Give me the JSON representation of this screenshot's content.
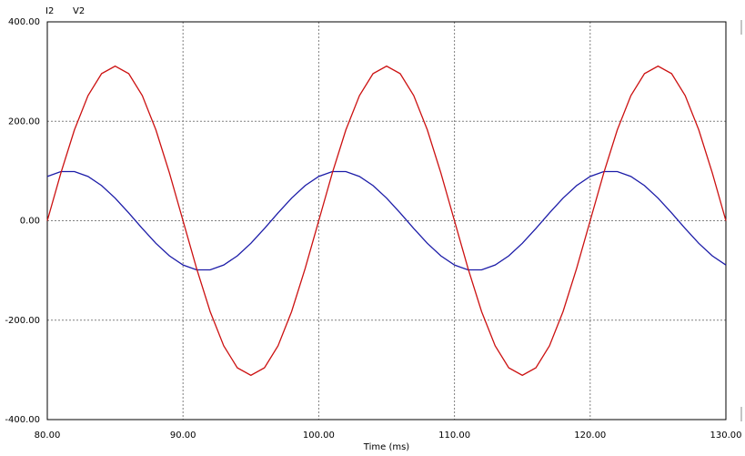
{
  "chart_data": {
    "type": "line",
    "xlabel": "Time (ms)",
    "x": [
      80,
      81,
      82,
      83,
      84,
      85,
      86,
      87,
      88,
      89,
      90,
      91,
      92,
      93,
      94,
      95,
      96,
      97,
      98,
      99,
      100,
      101,
      102,
      103,
      104,
      105,
      106,
      107,
      108,
      109,
      110,
      111,
      112,
      113,
      114,
      115,
      116,
      117,
      118,
      119,
      120,
      121,
      122,
      123,
      124,
      125,
      126,
      127,
      128,
      129,
      130
    ],
    "series": [
      {
        "name": "I2",
        "color": "#1c1ca8",
        "values": [
          89.1,
          98.8,
          98.8,
          89.1,
          70.7,
          45.4,
          15.6,
          -15.6,
          -45.4,
          -70.7,
          -89.1,
          -98.8,
          -98.8,
          -89.1,
          -70.7,
          -45.4,
          -15.6,
          15.6,
          45.4,
          70.7,
          89.1,
          98.8,
          98.8,
          89.1,
          70.7,
          45.4,
          15.6,
          -15.6,
          -45.4,
          -70.7,
          -89.1,
          -98.8,
          -98.8,
          -89.1,
          -70.7,
          -45.4,
          -15.6,
          15.6,
          45.4,
          70.7,
          89.1,
          98.8,
          98.8,
          89.1,
          70.7,
          45.4,
          15.6,
          -15.6,
          -45.4,
          -70.7,
          -89.1
        ]
      },
      {
        "name": "V2",
        "color": "#cc1111",
        "values": [
          0,
          96.1,
          182.8,
          251.6,
          295.8,
          311,
          295.8,
          251.6,
          182.8,
          96.1,
          0,
          -96.1,
          -182.8,
          -251.6,
          -295.8,
          -311,
          -295.8,
          -251.6,
          -182.8,
          -96.1,
          0,
          96.1,
          182.8,
          251.6,
          295.8,
          311,
          295.8,
          251.6,
          182.8,
          96.1,
          0,
          -96.1,
          -182.8,
          -251.6,
          -295.8,
          -311,
          -295.8,
          -251.6,
          -182.8,
          -96.1,
          0,
          96.1,
          182.8,
          251.6,
          295.8,
          311,
          295.8,
          251.6,
          182.8,
          96.1,
          0
        ]
      }
    ],
    "xlim": [
      80,
      130
    ],
    "xticks": [
      {
        "value": 80,
        "label": "80.00"
      },
      {
        "value": 90,
        "label": "90.00"
      },
      {
        "value": 100,
        "label": "100.00"
      },
      {
        "value": 110,
        "label": "110.00"
      },
      {
        "value": 120,
        "label": "120.00"
      },
      {
        "value": 130,
        "label": "130.00"
      }
    ],
    "ylim": [
      -400,
      400
    ],
    "yticks": [
      {
        "value": 400,
        "label": "400.00"
      },
      {
        "value": 200,
        "label": "200.00"
      },
      {
        "value": 0,
        "label": "0.00"
      },
      {
        "value": -200,
        "label": "-200.00"
      },
      {
        "value": -400,
        "label": "-400.00"
      }
    ],
    "grid": true
  }
}
